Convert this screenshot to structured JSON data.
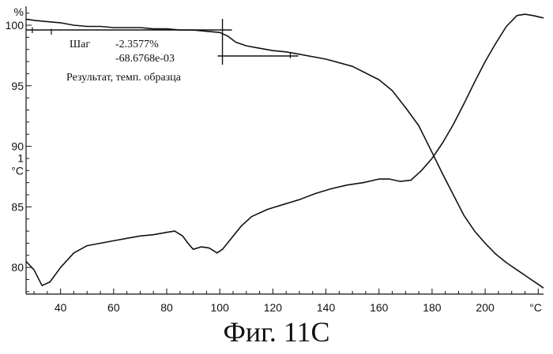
{
  "caption": "Фиг. 11С",
  "chart_data": {
    "type": "line",
    "title": "",
    "x_unit": "°C",
    "xlim": [
      27,
      222
    ],
    "x_ticks": [
      40,
      60,
      80,
      100,
      120,
      140,
      160,
      180,
      200
    ],
    "y_left_unit": "%",
    "y_left_lim": [
      77.8,
      101.3
    ],
    "y_left_ticks": [
      80,
      85,
      90,
      95,
      100
    ],
    "y_right_unit": "°C",
    "y_right_tick": "1",
    "grid": false,
    "series": [
      {
        "x": [
          27,
          30,
          33,
          36,
          40,
          45,
          50,
          55,
          60,
          65,
          70,
          75,
          80,
          83,
          86,
          88,
          90,
          93,
          96,
          99,
          101,
          104,
          108,
          112,
          118,
          124,
          130,
          136,
          142,
          148,
          154,
          160,
          164,
          168,
          172,
          176,
          180,
          184,
          188,
          192,
          196,
          200,
          204,
          208,
          212,
          215,
          218,
          222
        ],
        "y": [
          80.5,
          79.8,
          78.5,
          78.8,
          80.0,
          81.2,
          81.8,
          82.0,
          82.2,
          82.4,
          82.6,
          82.7,
          82.9,
          83.0,
          82.6,
          82.0,
          81.5,
          81.7,
          81.6,
          81.2,
          81.5,
          82.3,
          83.4,
          84.2,
          84.8,
          85.2,
          85.6,
          86.1,
          86.5,
          86.8,
          87.0,
          87.3,
          87.3,
          87.1,
          87.2,
          88.0,
          89.0,
          90.3,
          91.8,
          93.5,
          95.3,
          97.0,
          98.5,
          99.9,
          100.8,
          100.9,
          100.8,
          100.6
        ]
      },
      {
        "x": [
          27,
          30,
          35,
          40,
          45,
          50,
          55,
          60,
          65,
          70,
          75,
          80,
          85,
          90,
          95,
          100,
          103,
          106,
          110,
          115,
          120,
          125,
          130,
          140,
          150,
          160,
          165,
          170,
          175,
          180,
          184,
          188,
          192,
          196,
          200,
          204,
          208,
          212,
          216,
          220,
          222
        ],
        "y": [
          100.5,
          100.4,
          100.3,
          100.2,
          100.0,
          99.9,
          99.9,
          99.8,
          99.8,
          99.8,
          99.7,
          99.7,
          99.6,
          99.6,
          99.5,
          99.4,
          99.1,
          98.6,
          98.3,
          98.1,
          97.9,
          97.8,
          97.6,
          97.2,
          96.6,
          95.5,
          94.6,
          93.2,
          91.7,
          89.5,
          87.7,
          86.0,
          84.3,
          83.0,
          82.0,
          81.1,
          80.4,
          79.8,
          79.2,
          78.6,
          78.3
        ]
      }
    ],
    "annotation": {
      "step_label": "Шаг",
      "step_value": "-2.3577%",
      "rate_value": "-68.6768e-03",
      "result_label": "Результат, темп. образца",
      "marker_start_x": 101,
      "marker_end_x": 126
    }
  }
}
